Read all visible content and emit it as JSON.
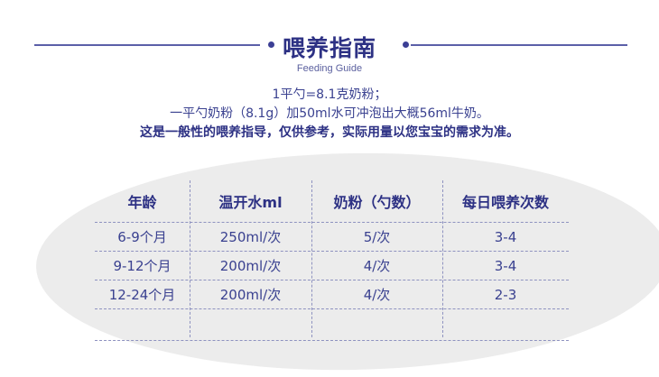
{
  "header": {
    "title": "喂养指南",
    "subtitle": "Feeding Guide"
  },
  "notes": [
    "1平勺=8.1克奶粉；",
    "一平勺奶粉（8.1g）加50ml水可冲泡出大概56ml牛奶。",
    "这是一般性的喂养指导，仅供参考，实际用量以您宝宝的需求为准。"
  ],
  "table": {
    "headers": [
      "年龄",
      "温开水ml",
      "奶粉（勺数）",
      "每日喂养次数"
    ],
    "rows": [
      [
        "6-9个月",
        "250ml/次",
        "5/次",
        "3-4"
      ],
      [
        "9-12个月",
        "200ml/次",
        "4/次",
        "3-4"
      ],
      [
        "12-24个月",
        "200ml/次",
        "4/次",
        "2-3"
      ]
    ]
  },
  "colors": {
    "primary": "#2d3184",
    "text": "#3a4190",
    "background_shape": "#ececec",
    "divider": "#8e92c0"
  }
}
